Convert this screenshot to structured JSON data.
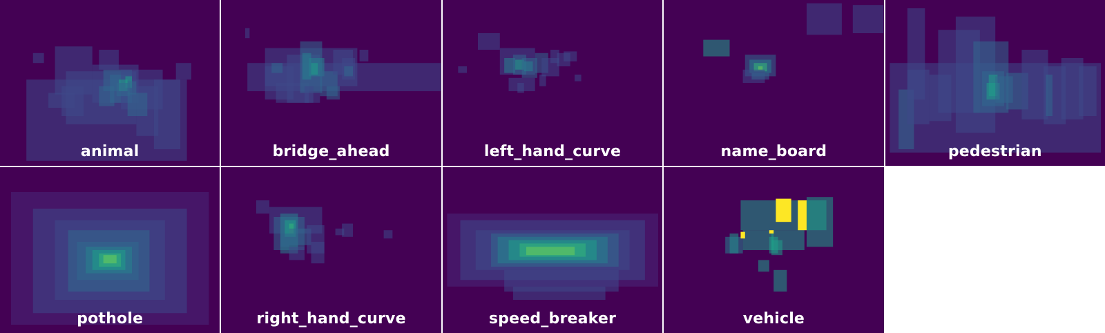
{
  "chart_data": {
    "type": "heatmap",
    "colormap": "viridis",
    "background_color": "#440154",
    "panels": [
      {
        "label": "animal",
        "boxes": [
          [
            0.12,
            0.48,
            0.85,
            0.97,
            0.25
          ],
          [
            0.25,
            0.28,
            0.42,
            0.57,
            0.25
          ],
          [
            0.3,
            0.43,
            0.62,
            0.75,
            0.25
          ],
          [
            0.42,
            0.39,
            0.63,
            0.62,
            0.25
          ],
          [
            0.47,
            0.42,
            0.6,
            0.55,
            0.3
          ],
          [
            0.5,
            0.45,
            0.6,
            0.62,
            0.3
          ],
          [
            0.55,
            0.42,
            0.74,
            0.66,
            0.25
          ],
          [
            0.62,
            0.52,
            0.72,
            0.82,
            0.25
          ],
          [
            0.7,
            0.48,
            0.82,
            0.9,
            0.2
          ],
          [
            0.8,
            0.38,
            0.87,
            0.48,
            0.25
          ],
          [
            0.28,
            0.52,
            0.38,
            0.7,
            0.25
          ],
          [
            0.22,
            0.56,
            0.34,
            0.65,
            0.25
          ],
          [
            0.54,
            0.48,
            0.58,
            0.55,
            0.5
          ],
          [
            0.57,
            0.46,
            0.6,
            0.53,
            0.55
          ],
          [
            0.53,
            0.5,
            0.59,
            0.58,
            0.35
          ],
          [
            0.58,
            0.49,
            0.62,
            0.57,
            0.3
          ],
          [
            0.45,
            0.52,
            0.52,
            0.64,
            0.3
          ],
          [
            0.58,
            0.56,
            0.67,
            0.7,
            0.3
          ],
          [
            0.15,
            0.32,
            0.2,
            0.38,
            0.25
          ],
          [
            0.45,
            0.3,
            0.54,
            0.42,
            0.25
          ]
        ]
      },
      {
        "label": "bridge_ahead",
        "boxes": [
          [
            0.11,
            0.17,
            0.13,
            0.23,
            0.25
          ],
          [
            0.12,
            0.38,
            1.0,
            0.55,
            0.25
          ],
          [
            0.2,
            0.29,
            0.62,
            0.52,
            0.25
          ],
          [
            0.2,
            0.4,
            0.33,
            0.6,
            0.25
          ],
          [
            0.25,
            0.5,
            0.4,
            0.62,
            0.25
          ],
          [
            0.3,
            0.33,
            0.45,
            0.62,
            0.25
          ],
          [
            0.36,
            0.25,
            0.46,
            0.56,
            0.3
          ],
          [
            0.37,
            0.32,
            0.41,
            0.48,
            0.45
          ],
          [
            0.4,
            0.35,
            0.47,
            0.46,
            0.4
          ],
          [
            0.41,
            0.38,
            0.44,
            0.45,
            0.55
          ],
          [
            0.45,
            0.43,
            0.53,
            0.58,
            0.3
          ],
          [
            0.48,
            0.52,
            0.54,
            0.6,
            0.35
          ],
          [
            0.51,
            0.3,
            0.6,
            0.45,
            0.25
          ],
          [
            0.55,
            0.35,
            0.61,
            0.48,
            0.25
          ],
          [
            0.63,
            0.3,
            0.67,
            0.37,
            0.25
          ],
          [
            0.38,
            0.52,
            0.42,
            0.62,
            0.25
          ],
          [
            0.23,
            0.38,
            0.28,
            0.44,
            0.3
          ],
          [
            0.56,
            0.4,
            0.6,
            0.46,
            0.3
          ]
        ]
      },
      {
        "label": "left_hand_curve",
        "boxes": [
          [
            0.16,
            0.2,
            0.26,
            0.3,
            0.25
          ],
          [
            0.07,
            0.4,
            0.11,
            0.44,
            0.25
          ],
          [
            0.26,
            0.29,
            0.42,
            0.45,
            0.25
          ],
          [
            0.28,
            0.35,
            0.33,
            0.44,
            0.4
          ],
          [
            0.32,
            0.33,
            0.38,
            0.45,
            0.35
          ],
          [
            0.33,
            0.36,
            0.37,
            0.42,
            0.5
          ],
          [
            0.36,
            0.35,
            0.43,
            0.47,
            0.3
          ],
          [
            0.37,
            0.37,
            0.41,
            0.43,
            0.45
          ],
          [
            0.42,
            0.32,
            0.48,
            0.44,
            0.3
          ],
          [
            0.45,
            0.35,
            0.53,
            0.46,
            0.25
          ],
          [
            0.49,
            0.3,
            0.53,
            0.38,
            0.25
          ],
          [
            0.52,
            0.32,
            0.58,
            0.4,
            0.25
          ],
          [
            0.55,
            0.31,
            0.61,
            0.37,
            0.25
          ],
          [
            0.3,
            0.47,
            0.42,
            0.55,
            0.25
          ],
          [
            0.34,
            0.5,
            0.37,
            0.56,
            0.25
          ],
          [
            0.44,
            0.45,
            0.47,
            0.52,
            0.25
          ],
          [
            0.6,
            0.45,
            0.63,
            0.49,
            0.25
          ]
        ]
      },
      {
        "label": "name_board",
        "boxes": [
          [
            0.65,
            0.02,
            0.81,
            0.21,
            0.25
          ],
          [
            0.86,
            0.03,
            1.0,
            0.2,
            0.25
          ],
          [
            0.18,
            0.24,
            0.3,
            0.34,
            0.55
          ],
          [
            0.37,
            0.33,
            0.51,
            0.46,
            0.3
          ],
          [
            0.39,
            0.36,
            0.49,
            0.44,
            0.45
          ],
          [
            0.41,
            0.38,
            0.47,
            0.43,
            0.65
          ],
          [
            0.43,
            0.4,
            0.45,
            0.42,
            0.8
          ],
          [
            0.36,
            0.42,
            0.46,
            0.5,
            0.25
          ],
          [
            0.4,
            0.44,
            0.48,
            0.48,
            0.3
          ]
        ]
      },
      {
        "label": "pedestrian",
        "boxes": [
          [
            0.02,
            0.38,
            0.98,
            0.92,
            0.25
          ],
          [
            0.06,
            0.54,
            0.13,
            0.9,
            0.3
          ],
          [
            0.1,
            0.42,
            0.2,
            0.75,
            0.25
          ],
          [
            0.2,
            0.45,
            0.3,
            0.73,
            0.25
          ],
          [
            0.24,
            0.18,
            0.43,
            0.68,
            0.25
          ],
          [
            0.32,
            0.1,
            0.5,
            0.8,
            0.25
          ],
          [
            0.4,
            0.25,
            0.56,
            0.68,
            0.3
          ],
          [
            0.44,
            0.43,
            0.54,
            0.64,
            0.35
          ],
          [
            0.46,
            0.5,
            0.52,
            0.6,
            0.5
          ],
          [
            0.47,
            0.45,
            0.51,
            0.58,
            0.55
          ],
          [
            0.5,
            0.46,
            0.58,
            0.62,
            0.35
          ],
          [
            0.55,
            0.44,
            0.65,
            0.66,
            0.3
          ],
          [
            0.62,
            0.3,
            0.74,
            0.72,
            0.25
          ],
          [
            0.72,
            0.4,
            0.82,
            0.75,
            0.25
          ],
          [
            0.73,
            0.45,
            0.76,
            0.7,
            0.3
          ],
          [
            0.8,
            0.35,
            0.9,
            0.72,
            0.25
          ],
          [
            0.88,
            0.4,
            0.96,
            0.7,
            0.25
          ],
          [
            0.1,
            0.05,
            0.18,
            0.6,
            0.2
          ]
        ]
      },
      {
        "label": "pothole",
        "boxes": [
          [
            0.05,
            0.15,
            0.95,
            0.95,
            0.15
          ],
          [
            0.15,
            0.25,
            0.85,
            0.88,
            0.2
          ],
          [
            0.25,
            0.32,
            0.75,
            0.8,
            0.25
          ],
          [
            0.31,
            0.38,
            0.68,
            0.75,
            0.3
          ],
          [
            0.35,
            0.45,
            0.63,
            0.68,
            0.35
          ],
          [
            0.39,
            0.48,
            0.6,
            0.64,
            0.45
          ],
          [
            0.42,
            0.5,
            0.57,
            0.62,
            0.55
          ],
          [
            0.45,
            0.52,
            0.55,
            0.6,
            0.65
          ],
          [
            0.47,
            0.53,
            0.53,
            0.58,
            0.8
          ]
        ]
      },
      {
        "label": "right_hand_curve",
        "boxes": [
          [
            0.16,
            0.2,
            0.22,
            0.28,
            0.25
          ],
          [
            0.22,
            0.24,
            0.46,
            0.4,
            0.25
          ],
          [
            0.24,
            0.3,
            0.38,
            0.5,
            0.35
          ],
          [
            0.27,
            0.28,
            0.35,
            0.52,
            0.4
          ],
          [
            0.29,
            0.32,
            0.34,
            0.42,
            0.55
          ],
          [
            0.31,
            0.34,
            0.33,
            0.4,
            0.7
          ],
          [
            0.31,
            0.37,
            0.41,
            0.47,
            0.3
          ],
          [
            0.39,
            0.35,
            0.47,
            0.52,
            0.25
          ],
          [
            0.41,
            0.45,
            0.47,
            0.58,
            0.25
          ],
          [
            0.52,
            0.37,
            0.56,
            0.41,
            0.25
          ],
          [
            0.55,
            0.34,
            0.6,
            0.42,
            0.25
          ],
          [
            0.74,
            0.38,
            0.78,
            0.43,
            0.25
          ],
          [
            0.31,
            0.48,
            0.38,
            0.56,
            0.25
          ],
          [
            0.27,
            0.4,
            0.31,
            0.48,
            0.3
          ]
        ]
      },
      {
        "label": "speed_breaker",
        "boxes": [
          [
            0.02,
            0.28,
            0.98,
            0.72,
            0.15
          ],
          [
            0.08,
            0.32,
            0.92,
            0.68,
            0.2
          ],
          [
            0.15,
            0.38,
            0.85,
            0.62,
            0.25
          ],
          [
            0.22,
            0.4,
            0.8,
            0.6,
            0.3
          ],
          [
            0.25,
            0.42,
            0.75,
            0.58,
            0.4
          ],
          [
            0.3,
            0.44,
            0.7,
            0.56,
            0.5
          ],
          [
            0.35,
            0.46,
            0.65,
            0.54,
            0.65
          ],
          [
            0.38,
            0.48,
            0.6,
            0.53,
            0.8
          ],
          [
            0.28,
            0.62,
            0.8,
            0.75,
            0.25
          ],
          [
            0.32,
            0.72,
            0.74,
            0.8,
            0.2
          ]
        ]
      },
      {
        "label": "vehicle",
        "boxes": [
          [
            0.35,
            0.2,
            0.74,
            0.38,
            0.5
          ],
          [
            0.36,
            0.38,
            0.5,
            0.5,
            0.5
          ],
          [
            0.49,
            0.38,
            0.64,
            0.5,
            0.5
          ],
          [
            0.51,
            0.19,
            0.58,
            0.33,
            0.95
          ],
          [
            0.61,
            0.2,
            0.65,
            0.38,
            0.95
          ],
          [
            0.65,
            0.18,
            0.77,
            0.48,
            0.5
          ],
          [
            0.3,
            0.4,
            0.34,
            0.52,
            0.5
          ],
          [
            0.28,
            0.42,
            0.36,
            0.52,
            0.45
          ],
          [
            0.48,
            0.42,
            0.52,
            0.52,
            0.5
          ],
          [
            0.49,
            0.44,
            0.54,
            0.53,
            0.5
          ],
          [
            0.43,
            0.56,
            0.48,
            0.63,
            0.5
          ],
          [
            0.5,
            0.62,
            0.56,
            0.75,
            0.5
          ],
          [
            0.35,
            0.39,
            0.37,
            0.43,
            0.95
          ],
          [
            0.48,
            0.38,
            0.5,
            0.4,
            0.95
          ]
        ]
      }
    ]
  }
}
